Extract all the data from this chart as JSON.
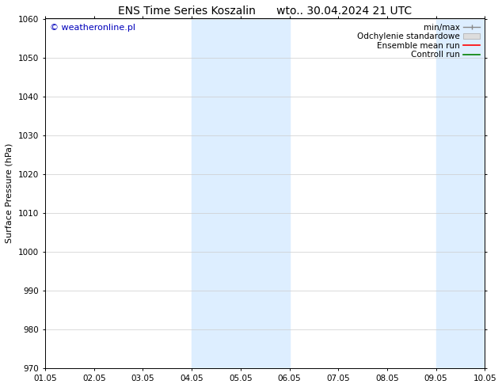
{
  "title": "ENS Time Series Koszalin      wto.. 30.04.2024 21 UTC",
  "ylabel": "Surface Pressure (hPa)",
  "ylim": [
    970,
    1060
  ],
  "yticks": [
    970,
    980,
    990,
    1000,
    1010,
    1020,
    1030,
    1040,
    1050,
    1060
  ],
  "x_labels": [
    "01.05",
    "02.05",
    "03.05",
    "04.05",
    "05.05",
    "06.05",
    "07.05",
    "08.05",
    "09.05",
    "10.05"
  ],
  "x_values": [
    0,
    1,
    2,
    3,
    4,
    5,
    6,
    7,
    8,
    9
  ],
  "shade_bands": [
    {
      "xmin": 3.0,
      "xmax": 5.0
    },
    {
      "xmin": 8.0,
      "xmax": 9.0
    }
  ],
  "shade_color": "#ddeeff",
  "copyright_text": "© weatheronline.pl",
  "copyright_color": "#0000bb",
  "legend_labels": [
    "min/max",
    "Odchylenie standardowe",
    "Ensemble mean run",
    "Controll run"
  ],
  "background_color": "#ffffff",
  "grid_color": "#cccccc",
  "title_fontsize": 10,
  "axis_label_fontsize": 8,
  "tick_fontsize": 7.5,
  "copyright_fontsize": 8,
  "legend_fontsize": 7.5
}
